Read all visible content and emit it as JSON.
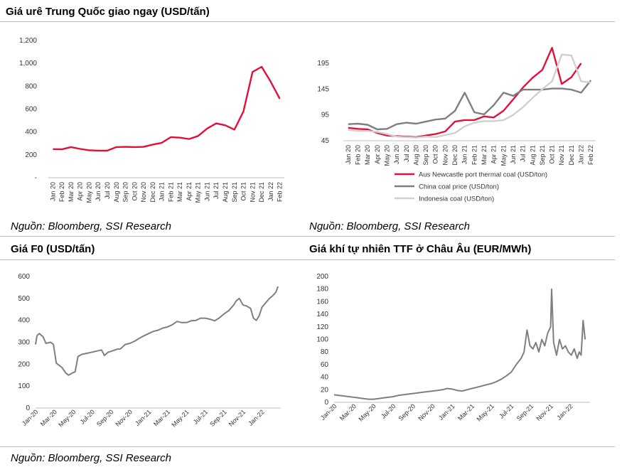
{
  "panels": {
    "urea": {
      "title": "Giá urê Trung Quốc giao ngay (USD/tấn)"
    },
    "coal": {
      "title": ""
    },
    "fo": {
      "title": "Giá F0 (USD/tấn)"
    },
    "ttf": {
      "title": "Giá khí tự nhiên TTF ở Châu Âu (EUR/MWh)"
    }
  },
  "sources": {
    "top_left": "Nguồn: Bloomberg, SSI Research",
    "top_right": "Nguồn: Bloomberg, SSI Research",
    "bottom": "Nguồn: Bloomberg, SSI Research"
  },
  "colors": {
    "red": "#e0103a",
    "gray": "#7f7f7f",
    "light_gray": "#d0d0d0"
  },
  "chart_data": [
    {
      "id": "urea",
      "type": "line",
      "title": "Giá urê Trung Quốc giao ngay (USD/tấn)",
      "categories": [
        "Jan 20",
        "Feb 20",
        "Mar 20",
        "Apr 20",
        "May 20",
        "Jun 20",
        "Jul 20",
        "Aug 20",
        "Sep 20",
        "Oct 20",
        "Nov 20",
        "Dec 20",
        "Jan 21",
        "Feb 21",
        "Mar 21",
        "Apr 21",
        "May 21",
        "Jun 21",
        "Jul 21",
        "Aug 21",
        "Sep 21",
        "Oct 21",
        "Nov 21",
        "Dec 21",
        "Jan 22",
        "Feb 22"
      ],
      "y_ticks": [
        "-",
        "200",
        "400",
        "600",
        "800",
        "1,000",
        "1,200"
      ],
      "ylim": [
        0,
        1200
      ],
      "series": [
        {
          "color": "#e0103a",
          "values": [
            250,
            248,
            268,
            252,
            240,
            237,
            237,
            268,
            270,
            268,
            270,
            290,
            305,
            355,
            350,
            338,
            365,
            430,
            475,
            458,
            420,
            580,
            925,
            970,
            840,
            690
          ]
        }
      ]
    },
    {
      "id": "coal",
      "type": "line",
      "categories": [
        "Jan 20",
        "Feb 20",
        "Mar 20",
        "Apr 20",
        "May 20",
        "Jun 20",
        "Jul 20",
        "Aug 20",
        "Sep 20",
        "Oct 20",
        "Nov 20",
        "Dec 20",
        "Jan 21",
        "Feb 21",
        "Mar 21",
        "Apr 21",
        "May 21",
        "Jun 21",
        "Jul 21",
        "Aug 21",
        "Sep 21",
        "Oct 21",
        "Nov 21",
        "Dec 21",
        "Jan 22",
        "Feb 22"
      ],
      "y_ticks": [
        45,
        95,
        145,
        195
      ],
      "ylim": [
        45,
        195
      ],
      "series": [
        {
          "name": "Aus Newcastle port thermal coal (USD/ton)",
          "color": "#e0103a",
          "values": [
            70,
            68,
            67,
            60,
            55,
            54,
            53,
            52,
            55,
            58,
            63,
            82,
            85,
            85,
            92,
            90,
            103,
            125,
            148,
            167,
            182,
            225,
            155,
            168,
            195,
            null
          ]
        },
        {
          "name": "China coal price (USD/ton)",
          "color": "#7f7f7f",
          "values": [
            77,
            78,
            76,
            67,
            68,
            77,
            80,
            78,
            82,
            86,
            88,
            103,
            138,
            100,
            96,
            114,
            138,
            132,
            144,
            144,
            144,
            146,
            146,
            144,
            138,
            162
          ]
        },
        {
          "name": "Indonesia coal (USD/ton)",
          "color": "#d0d0d0",
          "values": [
            66,
            64,
            64,
            62,
            58,
            53,
            52,
            51,
            53,
            52,
            56,
            60,
            73,
            80,
            83,
            83,
            85,
            95,
            110,
            128,
            145,
            160,
            212,
            210,
            160,
            158
          ]
        }
      ]
    },
    {
      "id": "fo",
      "type": "line",
      "title": "Giá F0 (USD/tấn)",
      "x_ticks": [
        "Jan-20",
        "Mar-20",
        "May-20",
        "Jul-20",
        "Sep-20",
        "Nov-20",
        "Jan-21",
        "Mar-21",
        "May-21",
        "Jul-21",
        "Sep-21",
        "Nov-21",
        "Jan-22"
      ],
      "y_ticks": [
        0,
        100,
        200,
        300,
        400,
        500,
        600
      ],
      "ylim": [
        0,
        600
      ],
      "series": [
        {
          "color": "#7f7f7f",
          "points": [
            [
              0,
              290
            ],
            [
              0.15,
              330
            ],
            [
              0.4,
              340
            ],
            [
              0.8,
              325
            ],
            [
              1.1,
              295
            ],
            [
              1.6,
              300
            ],
            [
              1.9,
              290
            ],
            [
              2.2,
              205
            ],
            [
              2.5,
              195
            ],
            [
              2.8,
              185
            ],
            [
              3.2,
              160
            ],
            [
              3.5,
              150
            ],
            [
              3.9,
              160
            ],
            [
              4.2,
              165
            ],
            [
              4.5,
              235
            ],
            [
              4.9,
              245
            ],
            [
              5.5,
              250
            ],
            [
              6,
              255
            ],
            [
              6.5,
              260
            ],
            [
              7,
              265
            ],
            [
              7.3,
              240
            ],
            [
              7.7,
              255
            ],
            [
              8.1,
              260
            ],
            [
              8.6,
              268
            ],
            [
              9,
              270
            ],
            [
              9.5,
              290
            ],
            [
              10,
              295
            ],
            [
              10.5,
              305
            ],
            [
              11,
              318
            ],
            [
              11.5,
              330
            ],
            [
              12,
              340
            ],
            [
              12.5,
              350
            ],
            [
              13,
              355
            ],
            [
              13.5,
              365
            ],
            [
              14,
              370
            ],
            [
              14.5,
              380
            ],
            [
              15,
              395
            ],
            [
              15.5,
              390
            ],
            [
              16,
              390
            ],
            [
              16.5,
              398
            ],
            [
              17,
              400
            ],
            [
              17.5,
              410
            ],
            [
              18,
              410
            ],
            [
              18.5,
              405
            ],
            [
              19,
              398
            ],
            [
              19.5,
              412
            ],
            [
              20,
              430
            ],
            [
              20.5,
              445
            ],
            [
              21,
              470
            ],
            [
              21.3,
              490
            ],
            [
              21.6,
              500
            ],
            [
              22,
              470
            ],
            [
              22.4,
              465
            ],
            [
              22.8,
              455
            ],
            [
              23.1,
              410
            ],
            [
              23.4,
              400
            ],
            [
              23.7,
              420
            ],
            [
              24,
              460
            ],
            [
              24.4,
              480
            ],
            [
              24.8,
              500
            ],
            [
              25.2,
              515
            ],
            [
              25.5,
              530
            ],
            [
              25.7,
              555
            ]
          ]
        }
      ]
    },
    {
      "id": "ttf",
      "type": "line",
      "title": "Giá khí tự nhiên TTF ở Châu Âu (EUR/MWh)",
      "x_ticks": [
        "Jan-20",
        "Mar-20",
        "May-20",
        "Jul-20",
        "Sep-20",
        "Nov-20",
        "Jan-21",
        "Mar-21",
        "May-21",
        "Jul-21",
        "Sep-21",
        "Nov-21",
        "Jan-22"
      ],
      "y_ticks": [
        0,
        20,
        40,
        60,
        80,
        100,
        120,
        140,
        160,
        180,
        200
      ],
      "ylim": [
        0,
        200
      ],
      "series": [
        {
          "color": "#7f7f7f",
          "points": [
            [
              0,
              12
            ],
            [
              0.5,
              11
            ],
            [
              1,
              10
            ],
            [
              1.5,
              9
            ],
            [
              2,
              8
            ],
            [
              2.5,
              7
            ],
            [
              3,
              6
            ],
            [
              3.5,
              5
            ],
            [
              4,
              5
            ],
            [
              4.5,
              6
            ],
            [
              5,
              7
            ],
            [
              5.5,
              8
            ],
            [
              6,
              9
            ],
            [
              6.5,
              11
            ],
            [
              7,
              12
            ],
            [
              7.5,
              13
            ],
            [
              8,
              14
            ],
            [
              8.5,
              15
            ],
            [
              9,
              16
            ],
            [
              9.5,
              17
            ],
            [
              10,
              18
            ],
            [
              10.5,
              19
            ],
            [
              11,
              20
            ],
            [
              11.5,
              22
            ],
            [
              12,
              21
            ],
            [
              12.5,
              19
            ],
            [
              13,
              18
            ],
            [
              13.5,
              20
            ],
            [
              14,
              22
            ],
            [
              14.5,
              24
            ],
            [
              15,
              26
            ],
            [
              15.5,
              28
            ],
            [
              16,
              30
            ],
            [
              16.5,
              33
            ],
            [
              17,
              37
            ],
            [
              17.5,
              42
            ],
            [
              18,
              48
            ],
            [
              18.5,
              60
            ],
            [
              19,
              70
            ],
            [
              19.3,
              80
            ],
            [
              19.6,
              115
            ],
            [
              19.9,
              90
            ],
            [
              20.2,
              85
            ],
            [
              20.5,
              95
            ],
            [
              20.8,
              80
            ],
            [
              21.1,
              100
            ],
            [
              21.4,
              90
            ],
            [
              21.7,
              110
            ],
            [
              22,
              120
            ],
            [
              22.1,
              180
            ],
            [
              22.3,
              95
            ],
            [
              22.6,
              75
            ],
            [
              22.9,
              100
            ],
            [
              23.2,
              85
            ],
            [
              23.5,
              90
            ],
            [
              23.8,
              80
            ],
            [
              24.1,
              75
            ],
            [
              24.4,
              85
            ],
            [
              24.7,
              70
            ],
            [
              24.9,
              80
            ],
            [
              25.1,
              75
            ],
            [
              25.3,
              130
            ],
            [
              25.5,
              100
            ]
          ]
        }
      ]
    }
  ]
}
